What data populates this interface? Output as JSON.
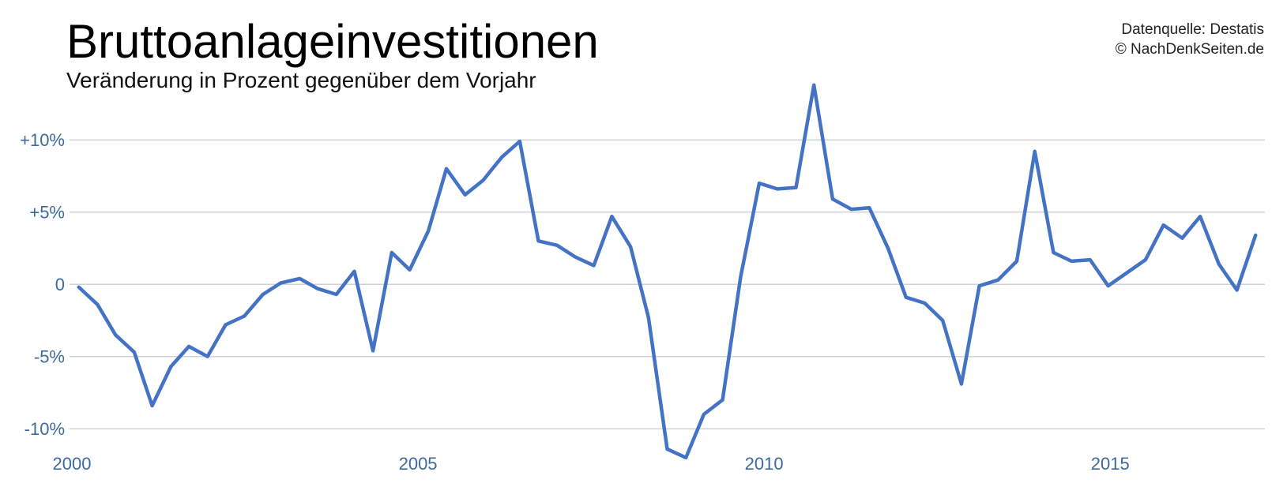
{
  "chart_data": {
    "type": "line",
    "title": "Bruttoanlageinvestitionen",
    "subtitle": "Veränderung in Prozent gegenüber dem Vorjahr",
    "source": [
      "Datenquelle: Destatis",
      "© NachDenkSeiten.de"
    ],
    "x": [
      2000.1,
      2000.37,
      2000.63,
      2000.9,
      2001.16,
      2001.43,
      2001.69,
      2001.96,
      2002.22,
      2002.49,
      2002.76,
      2003.02,
      2003.29,
      2003.55,
      2003.82,
      2004.08,
      2004.35,
      2004.62,
      2004.88,
      2005.15,
      2005.41,
      2005.68,
      2005.94,
      2006.21,
      2006.47,
      2006.74,
      2007.01,
      2007.27,
      2007.54,
      2007.8,
      2008.07,
      2008.33,
      2008.6,
      2008.87,
      2009.13,
      2009.4,
      2009.66,
      2009.93,
      2010.19,
      2010.46,
      2010.72,
      2010.99,
      2011.26,
      2011.52,
      2011.79,
      2012.05,
      2012.32,
      2012.58,
      2012.85,
      2013.11,
      2013.38,
      2013.65,
      2013.91,
      2014.18,
      2014.44,
      2014.71,
      2014.97,
      2015.24,
      2015.51,
      2015.77,
      2016.04,
      2016.3,
      2016.57,
      2016.83,
      2017.1
    ],
    "values": [
      -0.2,
      -1.4,
      -3.5,
      -4.7,
      -8.4,
      -5.7,
      -4.3,
      -5.0,
      -2.8,
      -2.2,
      -0.7,
      0.1,
      0.4,
      -0.3,
      -0.7,
      0.9,
      -4.6,
      2.2,
      1.0,
      3.7,
      8.0,
      6.2,
      7.2,
      8.8,
      9.9,
      3.0,
      2.7,
      1.9,
      1.3,
      4.7,
      2.6,
      -2.3,
      -11.4,
      -12.0,
      -9.0,
      -8.0,
      0.5,
      7.0,
      6.6,
      6.7,
      13.8,
      5.9,
      5.2,
      5.3,
      2.5,
      -0.9,
      -1.3,
      -2.5,
      -6.9,
      -0.1,
      0.3,
      1.6,
      9.2,
      2.2,
      1.6,
      1.7,
      -0.1,
      0.8,
      1.7,
      4.1,
      3.2,
      4.7,
      1.4,
      -0.4,
      3.4
    ],
    "color": "#4472c4",
    "xlim": [
      2000,
      2017.2
    ],
    "xticks": [
      2000,
      2005,
      2010,
      2015
    ],
    "ylim": [
      -12.5,
      14
    ],
    "yticks": [
      {
        "value": -10,
        "label": "-10%"
      },
      {
        "value": -5,
        "label": "-5%"
      },
      0,
      {
        "value": 5,
        "label": "+5%"
      },
      {
        "value": 10,
        "label": "+10%"
      }
    ],
    "grid": true
  }
}
